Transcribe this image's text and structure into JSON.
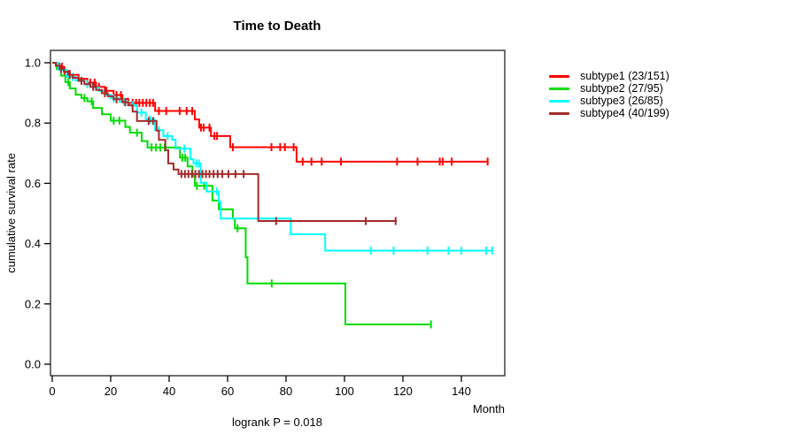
{
  "page": {
    "background": "#ffffff"
  },
  "chart_data": {
    "type": "line",
    "variant": "kaplan-meier-step-curves",
    "title": "Time to Death",
    "xlabel": "Month",
    "ylabel": "cumulative survival rate",
    "footnote": "logrank P = 0.018",
    "xlim": [
      0,
      155
    ],
    "ylim": [
      0,
      1.0
    ],
    "xticks": [
      0,
      20,
      40,
      60,
      80,
      100,
      120,
      140
    ],
    "yticks": [
      0.0,
      0.2,
      0.4,
      0.6,
      0.8,
      1.0
    ],
    "grid": false,
    "legend_position": "right-outside",
    "series": [
      {
        "name": "subtype1 (23/151)",
        "color": "#ff0000",
        "end_month": 149,
        "steps": [
          [
            0,
            1.0
          ],
          [
            2,
            0.987
          ],
          [
            4,
            0.973
          ],
          [
            6,
            0.96
          ],
          [
            9,
            0.947
          ],
          [
            12,
            0.934
          ],
          [
            15,
            0.92
          ],
          [
            18,
            0.907
          ],
          [
            21,
            0.893
          ],
          [
            24,
            0.88
          ],
          [
            26,
            0.867
          ],
          [
            35.2,
            0.84
          ],
          [
            48.8,
            0.812
          ],
          [
            50.3,
            0.785
          ],
          [
            54.3,
            0.757
          ],
          [
            60.9,
            0.72
          ],
          [
            83.6,
            0.672
          ]
        ],
        "censor_months": [
          2.4,
          3.3,
          4.2,
          13,
          14.5,
          16,
          18.5,
          22,
          23.5,
          27.5,
          28.7,
          29.8,
          31,
          32.2,
          33.4,
          34.5,
          36.5,
          39,
          43.6,
          46,
          47.9,
          50.9,
          51.8,
          53.8,
          55.5,
          56.4,
          61.8,
          75,
          78,
          79.6,
          82.6,
          85.7,
          88.7,
          92.2,
          98.8,
          118,
          125,
          132.6,
          133.6,
          136.7,
          149
        ]
      },
      {
        "name": "subtype2 (27/95)",
        "color": "#00dd00",
        "end_month": 129.6,
        "steps": [
          [
            0,
            1.0
          ],
          [
            1.5,
            0.979
          ],
          [
            3,
            0.957
          ],
          [
            4.5,
            0.936
          ],
          [
            6,
            0.915
          ],
          [
            8,
            0.894
          ],
          [
            10,
            0.883
          ],
          [
            12,
            0.872
          ],
          [
            14,
            0.85
          ],
          [
            17,
            0.829
          ],
          [
            20,
            0.808
          ],
          [
            25,
            0.787
          ],
          [
            26.6,
            0.768
          ],
          [
            30.6,
            0.74
          ],
          [
            32.6,
            0.719
          ],
          [
            43.7,
            0.685
          ],
          [
            46.3,
            0.656
          ],
          [
            48,
            0.624
          ],
          [
            48.8,
            0.592
          ],
          [
            54.8,
            0.543
          ],
          [
            57,
            0.514
          ],
          [
            61.8,
            0.482
          ],
          [
            62.5,
            0.451
          ],
          [
            66.2,
            0.355
          ],
          [
            66.8,
            0.268
          ],
          [
            100.3,
            0.132
          ]
        ],
        "censor_months": [
          5.5,
          11,
          13.5,
          21,
          23,
          29,
          34,
          35.5,
          37,
          38.5,
          44.5,
          45.5,
          49.5,
          52,
          63.4,
          75.1,
          129.6
        ]
      },
      {
        "name": "subtype3 (26/85)",
        "color": "#00ffff",
        "end_month": 151,
        "steps": [
          [
            0,
            1.0
          ],
          [
            2,
            0.976
          ],
          [
            5,
            0.953
          ],
          [
            8,
            0.941
          ],
          [
            11,
            0.929
          ],
          [
            14,
            0.918
          ],
          [
            16,
            0.906
          ],
          [
            18,
            0.894
          ],
          [
            20,
            0.882
          ],
          [
            23,
            0.871
          ],
          [
            26,
            0.859
          ],
          [
            29,
            0.835
          ],
          [
            32,
            0.812
          ],
          [
            35.2,
            0.776
          ],
          [
            38,
            0.757
          ],
          [
            41,
            0.745
          ],
          [
            42.2,
            0.715
          ],
          [
            47.3,
            0.68
          ],
          [
            48.3,
            0.666
          ],
          [
            50.8,
            0.602
          ],
          [
            52.8,
            0.573
          ],
          [
            57,
            0.539
          ],
          [
            57.6,
            0.483
          ],
          [
            81.6,
            0.431
          ],
          [
            93.4,
            0.377
          ]
        ],
        "censor_months": [
          7,
          12,
          21,
          24.5,
          27.5,
          30.5,
          33.5,
          36.5,
          39.5,
          45.2,
          49.3,
          50.2,
          56.4,
          109,
          116.8,
          128.4,
          135.6,
          140,
          148.5,
          150.5
        ]
      },
      {
        "name": "subtype4 (40/199)",
        "color": "#a52a2a",
        "end_month": 117.9,
        "steps": [
          [
            0,
            1.0
          ],
          [
            1.2,
            0.99
          ],
          [
            2.5,
            0.98
          ],
          [
            4,
            0.97
          ],
          [
            5.5,
            0.96
          ],
          [
            7,
            0.95
          ],
          [
            9,
            0.94
          ],
          [
            11,
            0.929
          ],
          [
            13,
            0.92
          ],
          [
            15,
            0.91
          ],
          [
            17,
            0.899
          ],
          [
            19,
            0.889
          ],
          [
            21,
            0.879
          ],
          [
            24,
            0.869
          ],
          [
            26,
            0.859
          ],
          [
            27.5,
            0.838
          ],
          [
            29,
            0.807
          ],
          [
            35.7,
            0.775
          ],
          [
            36.5,
            0.744
          ],
          [
            38.7,
            0.71
          ],
          [
            39.7,
            0.666
          ],
          [
            41.5,
            0.646
          ],
          [
            43.2,
            0.631
          ],
          [
            70.5,
            0.475
          ]
        ],
        "censor_months": [
          3,
          6,
          10,
          14,
          18,
          22,
          25,
          33,
          34.5,
          44.2,
          45.4,
          46.6,
          47.8,
          49,
          50.2,
          51.4,
          52.6,
          53.8,
          55.2,
          56.6,
          58.2,
          60.3,
          62.7,
          65.5,
          76.6,
          107.3,
          117.5
        ]
      }
    ]
  }
}
